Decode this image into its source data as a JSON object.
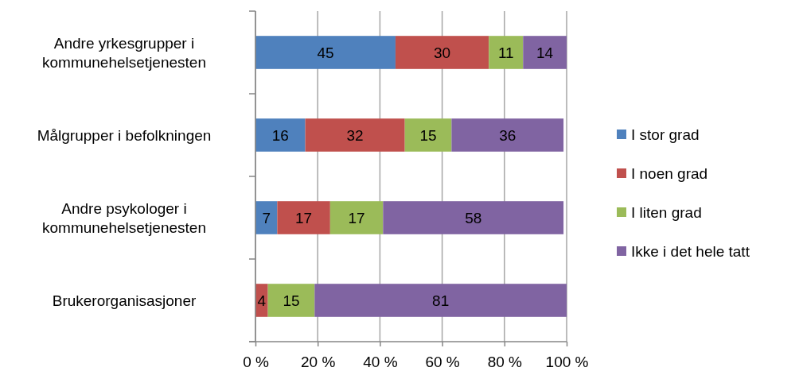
{
  "chart_data": {
    "type": "bar",
    "orientation": "horizontal",
    "stacked": true,
    "categories": [
      "Andre yrkesgrupper i kommunehelsetjenesten",
      "Målgrupper i befolkningen",
      "Andre psykologer i kommunehelsetjenesten",
      "Brukerorganisasjoner"
    ],
    "series": [
      {
        "name": "I stor grad",
        "color": "#4f81bd",
        "values": [
          45,
          16,
          7,
          null
        ],
        "value_labels": [
          "45",
          "16",
          "7",
          null
        ]
      },
      {
        "name": "I noen grad",
        "color": "#c0504d",
        "values": [
          30,
          32,
          17,
          4
        ],
        "value_labels": [
          "30",
          "32",
          "17",
          "4"
        ]
      },
      {
        "name": "I liten grad",
        "color": "#9bbb59",
        "values": [
          11,
          15,
          17,
          15
        ],
        "value_labels": [
          "11",
          "15",
          "17",
          "15"
        ]
      },
      {
        "name": "Ikke i det hele tatt",
        "color": "#8064a2",
        "values": [
          14,
          36,
          58,
          81
        ],
        "value_labels": [
          "14",
          "36",
          "58",
          "81"
        ]
      }
    ],
    "xlim": [
      0,
      100
    ],
    "xticks": [
      {
        "value": 0,
        "label": "0 %"
      },
      {
        "value": 20,
        "label": "20 %"
      },
      {
        "value": 40,
        "label": "40 %"
      },
      {
        "value": 60,
        "label": "60 %"
      },
      {
        "value": 80,
        "label": "80 %"
      },
      {
        "value": 100,
        "label": "100 %"
      }
    ],
    "grid": "x",
    "legend": "right"
  }
}
